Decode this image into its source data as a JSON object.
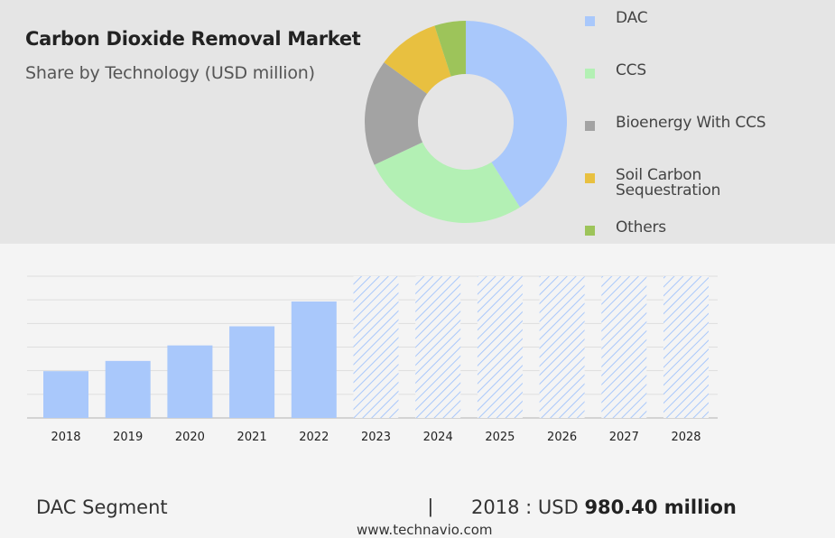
{
  "header": {
    "title": "Carbon Dioxide Removal Market",
    "subtitle": "Share by Technology (USD million)"
  },
  "chart_data": [
    {
      "type": "pie",
      "variant": "donut",
      "slices": [
        {
          "label": "DAC",
          "value": 41,
          "color": "#a9c8fb"
        },
        {
          "label": "CCS",
          "value": 27,
          "color": "#b3f0b4"
        },
        {
          "label": "Bioenergy With CCS",
          "value": 17,
          "color": "#a3a3a3"
        },
        {
          "label": "Soil Carbon Sequestration",
          "value": 10,
          "color": "#e8c040"
        },
        {
          "label": "Others",
          "value": 5,
          "color": "#9dc45a"
        }
      ],
      "legend_position": "right"
    },
    {
      "type": "bar",
      "categories": [
        "2018",
        "2019",
        "2020",
        "2021",
        "2022",
        "2023",
        "2024",
        "2025",
        "2026",
        "2027",
        "2028"
      ],
      "values": [
        980.4,
        1195,
        1520,
        1920,
        2440,
        null,
        null,
        null,
        null,
        null,
        null
      ],
      "forecast": [
        false,
        false,
        false,
        false,
        false,
        true,
        true,
        true,
        true,
        true,
        true
      ],
      "ylim": [
        0,
        2970
      ],
      "grid": true,
      "bar_color": "#a9c8fb",
      "forecast_pattern_color": "#a9c8fb"
    }
  ],
  "footer": {
    "segment_label": "DAC Segment",
    "separator": "|",
    "value_prefix": "2018 : USD",
    "value_bold": "980.40 million",
    "url": "www.technavio.com"
  }
}
